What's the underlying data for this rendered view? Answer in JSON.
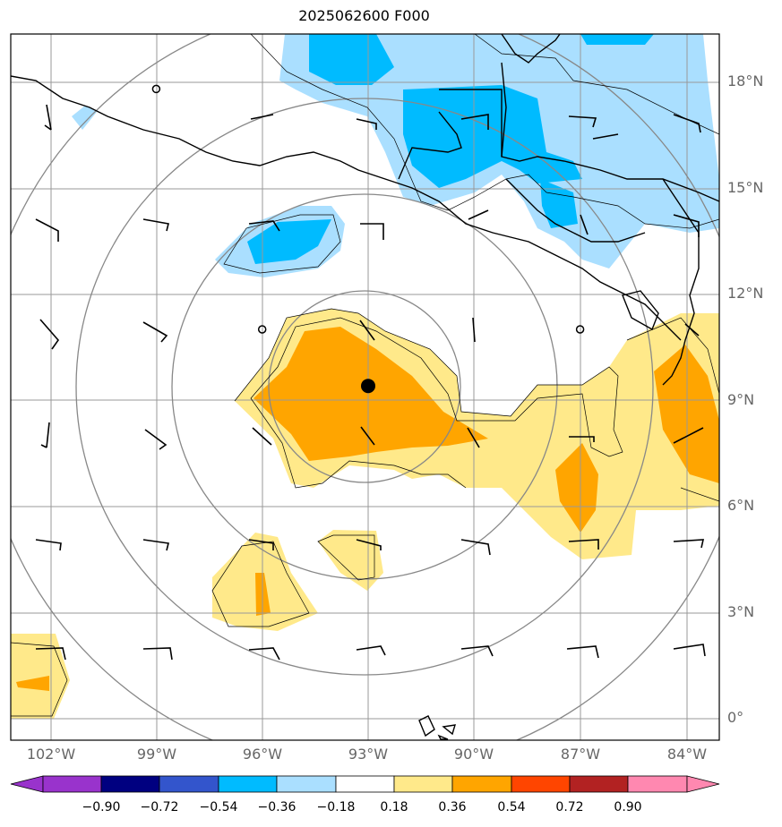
{
  "title": "2025062600 F000",
  "lat_labels": [
    "18°N",
    "15°N",
    "12°N",
    "9°N",
    "6°N",
    "3°N",
    "0°"
  ],
  "lon_labels": [
    "102°W",
    "99°W",
    "96°W",
    "93°W",
    "90°W",
    "87°W",
    "84°W"
  ],
  "colorbar": {
    "tick_labels": [
      "−0.90",
      "−0.72",
      "−0.54",
      "−0.36",
      "−0.18",
      "0.18",
      "0.36",
      "0.54",
      "0.72",
      "0.90"
    ],
    "colors": [
      "#9933cc",
      "#000080",
      "#3355cc",
      "#00bbff",
      "#aadfff",
      "#ffffff",
      "#ffe98a",
      "#ffa500",
      "#ff4500",
      "#b22222",
      "#ff88b0"
    ]
  },
  "map": {
    "center_marker": {
      "lon": -93.0,
      "lat": 9.4
    },
    "calm_circles": [
      {
        "lon": -99.0,
        "lat": 17.8
      },
      {
        "lon": -96.0,
        "lat": 11.0
      },
      {
        "lon": -87.0,
        "lat": 11.0
      }
    ]
  }
}
